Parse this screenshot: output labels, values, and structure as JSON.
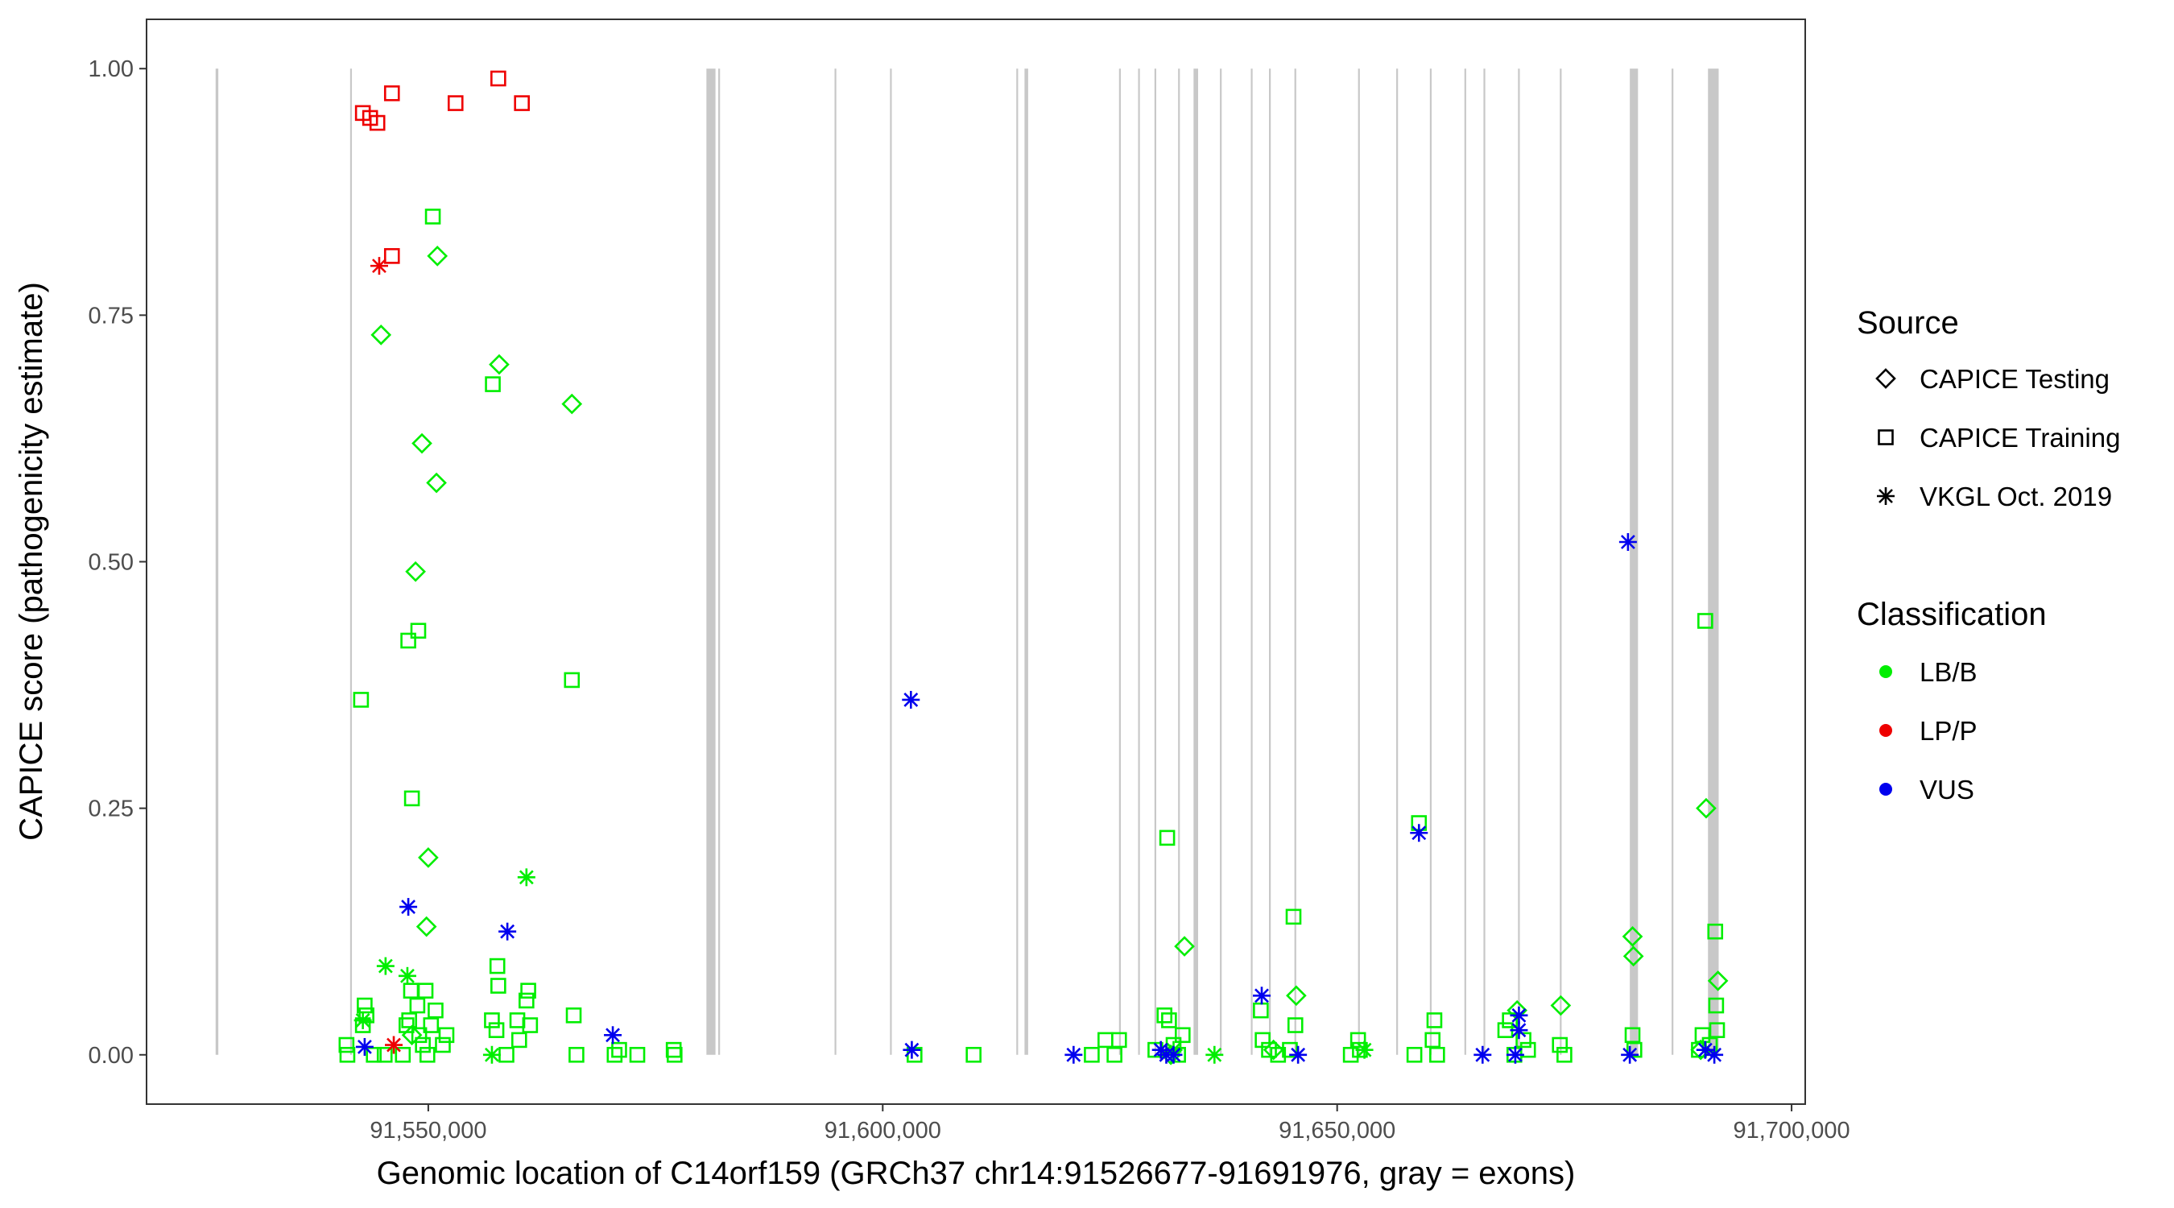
{
  "chart_data": {
    "type": "scatter",
    "title": "",
    "xlabel": "Genomic location of C14orf159 (GRCh37 chr14:91526677-91691976, gray = exons)",
    "ylabel": "CAPICE score (pathogenicity estimate)",
    "xlim": [
      91519000,
      91701500
    ],
    "ylim": [
      -0.05,
      1.05
    ],
    "x_ticks": [
      91550000,
      91600000,
      91650000,
      91700000
    ],
    "x_tick_labels": [
      "91,550,000",
      "91,600,000",
      "91,650,000",
      "91,700,000"
    ],
    "y_ticks": [
      0,
      0.25,
      0.5,
      0.75,
      1.0
    ],
    "y_tick_labels": [
      "0.00",
      "0.25",
      "0.50",
      "0.75",
      "1.00"
    ],
    "grid": false,
    "legend_position": "right",
    "exon_color": "#c8c8c8",
    "exons": [
      [
        91526600,
        91526900
      ],
      [
        91541400,
        91541550
      ],
      [
        91580600,
        91581600
      ],
      [
        91581900,
        91582100
      ],
      [
        91594700,
        91594850
      ],
      [
        91600800,
        91600950
      ],
      [
        91614700,
        91614850
      ],
      [
        91615600,
        91616000
      ],
      [
        91626000,
        91626150
      ],
      [
        91628100,
        91628250
      ],
      [
        91629900,
        91630050
      ],
      [
        91632500,
        91632650
      ],
      [
        91634200,
        91634700
      ],
      [
        91637100,
        91637250
      ],
      [
        91640500,
        91640650
      ],
      [
        91642500,
        91642650
      ],
      [
        91645300,
        91645450
      ],
      [
        91652300,
        91652450
      ],
      [
        91656500,
        91656650
      ],
      [
        91660200,
        91660350
      ],
      [
        91664000,
        91664150
      ],
      [
        91666100,
        91666250
      ],
      [
        91669900,
        91670050
      ],
      [
        91674500,
        91674650
      ],
      [
        91682200,
        91683100
      ],
      [
        91686800,
        91686950
      ],
      [
        91690800,
        91691976
      ]
    ],
    "shape_legend": {
      "title": "Source",
      "items": [
        {
          "name": "CAPICE Testing",
          "shape": "diamond"
        },
        {
          "name": "CAPICE Training",
          "shape": "square"
        },
        {
          "name": "VKGL Oct. 2019",
          "shape": "asterisk"
        }
      ]
    },
    "color_legend": {
      "title": "Classification",
      "items": [
        {
          "name": "LB/B",
          "color": "#00ee00"
        },
        {
          "name": "LP/P",
          "color": "#ee0000"
        },
        {
          "name": "VUS",
          "color": "#0000ee"
        }
      ]
    },
    "series": [
      {
        "source": "CAPICE Testing",
        "class": "LB/B",
        "points": [
          [
            91544800,
            0.73
          ],
          [
            91551000,
            0.81
          ],
          [
            91557800,
            0.7
          ],
          [
            91565800,
            0.66
          ],
          [
            91549300,
            0.62
          ],
          [
            91550900,
            0.58
          ],
          [
            91548600,
            0.49
          ],
          [
            91550000,
            0.2
          ],
          [
            91549800,
            0.13
          ],
          [
            91633200,
            0.11
          ],
          [
            91645500,
            0.06
          ],
          [
            91674600,
            0.05
          ],
          [
            91669800,
            0.045
          ],
          [
            91682500,
            0.12
          ],
          [
            91682600,
            0.1
          ],
          [
            91690600,
            0.25
          ],
          [
            91691900,
            0.075
          ],
          [
            91643000,
            0.005
          ],
          [
            91690000,
            0.005
          ],
          [
            91631700,
            0.0
          ],
          [
            91548200,
            0.02
          ]
        ]
      },
      {
        "source": "CAPICE Training",
        "class": "LB/B",
        "points": [
          [
            91550500,
            0.85
          ],
          [
            91557100,
            0.68
          ],
          [
            91548900,
            0.43
          ],
          [
            91547800,
            0.42
          ],
          [
            91565800,
            0.38
          ],
          [
            91542600,
            0.36
          ],
          [
            91548200,
            0.26
          ],
          [
            91631300,
            0.22
          ],
          [
            91659000,
            0.235
          ],
          [
            91645200,
            0.14
          ],
          [
            91690500,
            0.44
          ],
          [
            91691600,
            0.125
          ],
          [
            91691700,
            0.05
          ],
          [
            91541000,
            0.01
          ],
          [
            91541100,
            0.0
          ],
          [
            91543000,
            0.05
          ],
          [
            91543200,
            0.04
          ],
          [
            91542800,
            0.03
          ],
          [
            91544000,
            0.0
          ],
          [
            91545200,
            0.0
          ],
          [
            91547200,
            0.0
          ],
          [
            91547600,
            0.03
          ],
          [
            91547900,
            0.035
          ],
          [
            91548100,
            0.065
          ],
          [
            91548800,
            0.05
          ],
          [
            91549000,
            0.02
          ],
          [
            91549400,
            0.01
          ],
          [
            91549700,
            0.065
          ],
          [
            91549900,
            0.0
          ],
          [
            91550300,
            0.03
          ],
          [
            91550800,
            0.045
          ],
          [
            91551600,
            0.01
          ],
          [
            91552000,
            0.02
          ],
          [
            91557000,
            0.035
          ],
          [
            91557600,
            0.09
          ],
          [
            91557700,
            0.07
          ],
          [
            91557500,
            0.025
          ],
          [
            91558600,
            0.0
          ],
          [
            91559800,
            0.035
          ],
          [
            91560000,
            0.015
          ],
          [
            91560800,
            0.055
          ],
          [
            91561000,
            0.065
          ],
          [
            91561200,
            0.03
          ],
          [
            91566000,
            0.04
          ],
          [
            91566300,
            0.0
          ],
          [
            91570500,
            0.0
          ],
          [
            91571000,
            0.005
          ],
          [
            91573000,
            0.0
          ],
          [
            91577000,
            0.005
          ],
          [
            91577100,
            0.0
          ],
          [
            91603500,
            0.0
          ],
          [
            91610000,
            0.0
          ],
          [
            91623000,
            0.0
          ],
          [
            91624500,
            0.015
          ],
          [
            91625500,
            0.0
          ],
          [
            91626000,
            0.015
          ],
          [
            91630000,
            0.005
          ],
          [
            91631000,
            0.04
          ],
          [
            91631500,
            0.035
          ],
          [
            91632000,
            0.01
          ],
          [
            91632500,
            0.0
          ],
          [
            91633000,
            0.02
          ],
          [
            91641600,
            0.045
          ],
          [
            91641800,
            0.015
          ],
          [
            91642500,
            0.005
          ],
          [
            91643500,
            0.0
          ],
          [
            91644800,
            0.005
          ],
          [
            91645400,
            0.03
          ],
          [
            91651500,
            0.0
          ],
          [
            91652300,
            0.015
          ],
          [
            91652500,
            0.005
          ],
          [
            91658500,
            0.0
          ],
          [
            91660500,
            0.015
          ],
          [
            91660700,
            0.035
          ],
          [
            91661000,
            0.0
          ],
          [
            91668500,
            0.025
          ],
          [
            91669000,
            0.035
          ],
          [
            91669500,
            0.0
          ],
          [
            91670500,
            0.015
          ],
          [
            91671000,
            0.005
          ],
          [
            91674500,
            0.01
          ],
          [
            91675000,
            0.0
          ],
          [
            91682500,
            0.02
          ],
          [
            91682700,
            0.005
          ],
          [
            91689800,
            0.005
          ],
          [
            91690200,
            0.02
          ],
          [
            91691000,
            0.01
          ],
          [
            91691800,
            0.025
          ]
        ]
      },
      {
        "source": "CAPICE Training",
        "class": "LP/P",
        "points": [
          [
            91542800,
            0.955
          ],
          [
            91543600,
            0.95
          ],
          [
            91544400,
            0.945
          ],
          [
            91546000,
            0.975
          ],
          [
            91553000,
            0.965
          ],
          [
            91557700,
            0.99
          ],
          [
            91560300,
            0.965
          ],
          [
            91546000,
            0.81
          ]
        ]
      },
      {
        "source": "VKGL Oct. 2019",
        "class": "LB/B",
        "points": [
          [
            91545300,
            0.09
          ],
          [
            91547700,
            0.08
          ],
          [
            91560800,
            0.18
          ],
          [
            91542800,
            0.035
          ],
          [
            91557000,
            0.0
          ],
          [
            91636500,
            0.0
          ],
          [
            91653000,
            0.005
          ],
          [
            91632000,
            0.005
          ]
        ]
      },
      {
        "source": "VKGL Oct. 2019",
        "class": "LP/P",
        "points": [
          [
            91544600,
            0.8
          ],
          [
            91546200,
            0.01
          ]
        ]
      },
      {
        "source": "VKGL Oct. 2019",
        "class": "VUS",
        "points": [
          [
            91547800,
            0.15
          ],
          [
            91558700,
            0.125
          ],
          [
            91603100,
            0.36
          ],
          [
            91682000,
            0.52
          ],
          [
            91659000,
            0.225
          ],
          [
            91641700,
            0.06
          ],
          [
            91670000,
            0.04
          ],
          [
            91670000,
            0.025
          ],
          [
            91570300,
            0.02
          ],
          [
            91543000,
            0.008
          ],
          [
            91603200,
            0.005
          ],
          [
            91621000,
            0.0
          ],
          [
            91630600,
            0.005
          ],
          [
            91631200,
            0.0
          ],
          [
            91632000,
            0.0
          ],
          [
            91645700,
            0.0
          ],
          [
            91666000,
            0.0
          ],
          [
            91669600,
            0.0
          ],
          [
            91682200,
            0.0
          ],
          [
            91690500,
            0.005
          ],
          [
            91691500,
            0.0
          ]
        ]
      }
    ]
  }
}
